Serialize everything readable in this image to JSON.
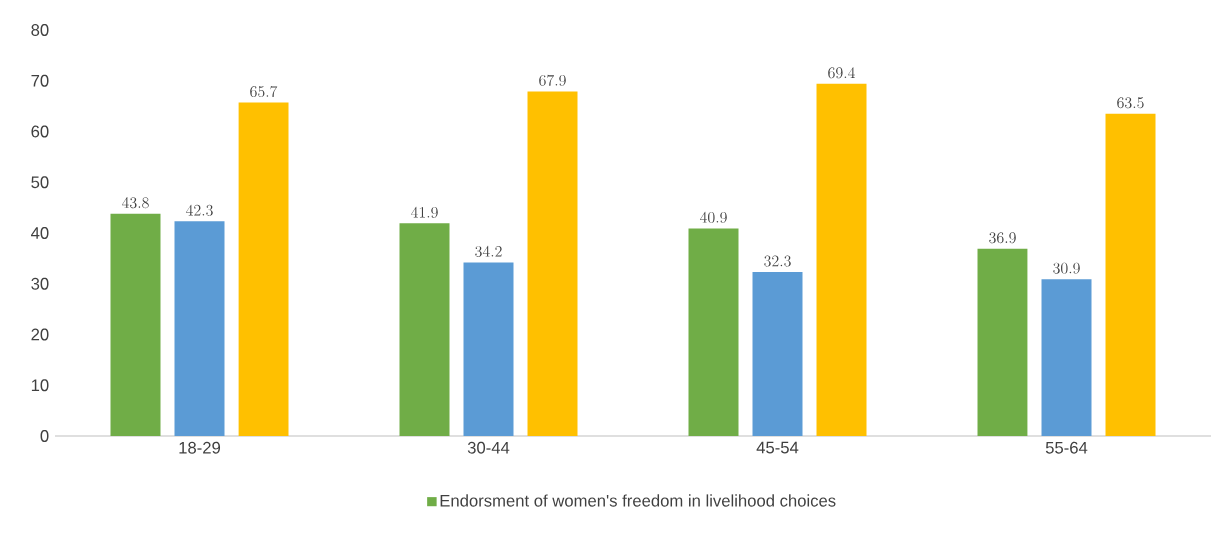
{
  "chart_data": {
    "type": "bar",
    "categories": [
      "18-29",
      "30-44",
      "45-54",
      "55-64"
    ],
    "series": [
      {
        "name": "Endorsment of women's freedom in livelihood choices",
        "color": "#70ad47",
        "values": [
          43.8,
          41.9,
          40.9,
          36.9
        ]
      },
      {
        "color": "#5b9bd5",
        "values": [
          42.3,
          34.2,
          32.3,
          30.9
        ]
      },
      {
        "color": "#ffc000",
        "values": [
          65.7,
          67.9,
          69.4,
          63.5
        ]
      }
    ],
    "ylim": [
      0,
      80
    ],
    "yticks": [
      0,
      10,
      20,
      30,
      40,
      50,
      60,
      70,
      80
    ],
    "data_labels": true,
    "legend": "bottom"
  }
}
